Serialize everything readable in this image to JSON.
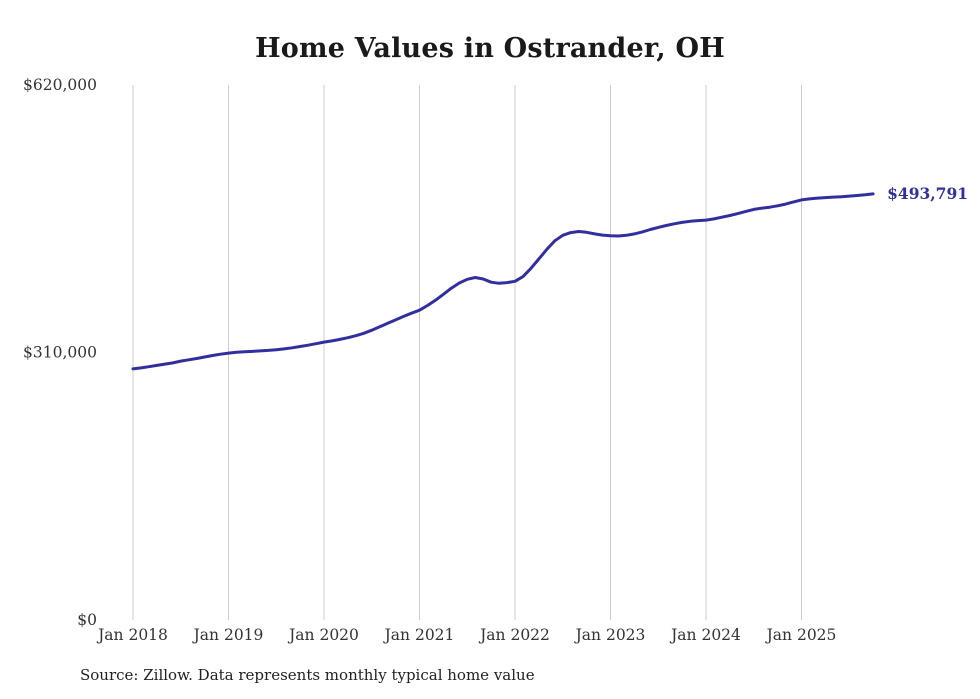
{
  "chart_data": {
    "type": "line",
    "title": "Home Values in Ostrander, OH",
    "series_name": "Typical home value",
    "x_tick_labels": [
      "Jan 2018",
      "Jan 2019",
      "Jan 2020",
      "Jan 2021",
      "Jan 2022",
      "Jan 2023",
      "Jan 2024",
      "Jan 2025"
    ],
    "y_ticks": [
      {
        "label": "$0",
        "value": 0
      },
      {
        "label": "$310,000",
        "value": 310000
      },
      {
        "label": "$620,000",
        "value": 620000
      }
    ],
    "ylim": [
      0,
      620000
    ],
    "grid": "vertical-only",
    "x_frequency": "monthly",
    "x_range": "Jan 2018 - Oct 2025",
    "values": [
      291000,
      292200,
      293500,
      295000,
      296500,
      298000,
      300000,
      301500,
      303000,
      304800,
      306500,
      308000,
      309300,
      310200,
      310800,
      311300,
      311800,
      312400,
      313200,
      314200,
      315500,
      317000,
      318500,
      320200,
      322000,
      323500,
      325200,
      327200,
      329500,
      332200,
      335800,
      339800,
      343800,
      347800,
      351800,
      355600,
      359000,
      364500,
      370500,
      377500,
      384500,
      390500,
      394800,
      396900,
      395200,
      391500,
      390200,
      391000,
      392500,
      398000,
      407500,
      418500,
      429500,
      439500,
      445800,
      448900,
      450200,
      449300,
      447500,
      446000,
      445200,
      445000,
      445800,
      447500,
      449800,
      452500,
      455000,
      457200,
      459200,
      460800,
      462000,
      462800,
      463400,
      464800,
      466800,
      468800,
      471000,
      473500,
      475800,
      477200,
      478400,
      480000,
      482000,
      484500,
      486800,
      488000,
      488900,
      489500,
      490100,
      490600,
      491200,
      491900,
      492700,
      493791
    ],
    "end_label": "$493,791",
    "end_value": 493791,
    "line_color": "#312f9e",
    "end_label_color": "#312f9e",
    "gridline_color": "#cccccc",
    "tick_label_color": "#333333"
  },
  "source": "Source: Zillow. Data represents monthly typical home value"
}
